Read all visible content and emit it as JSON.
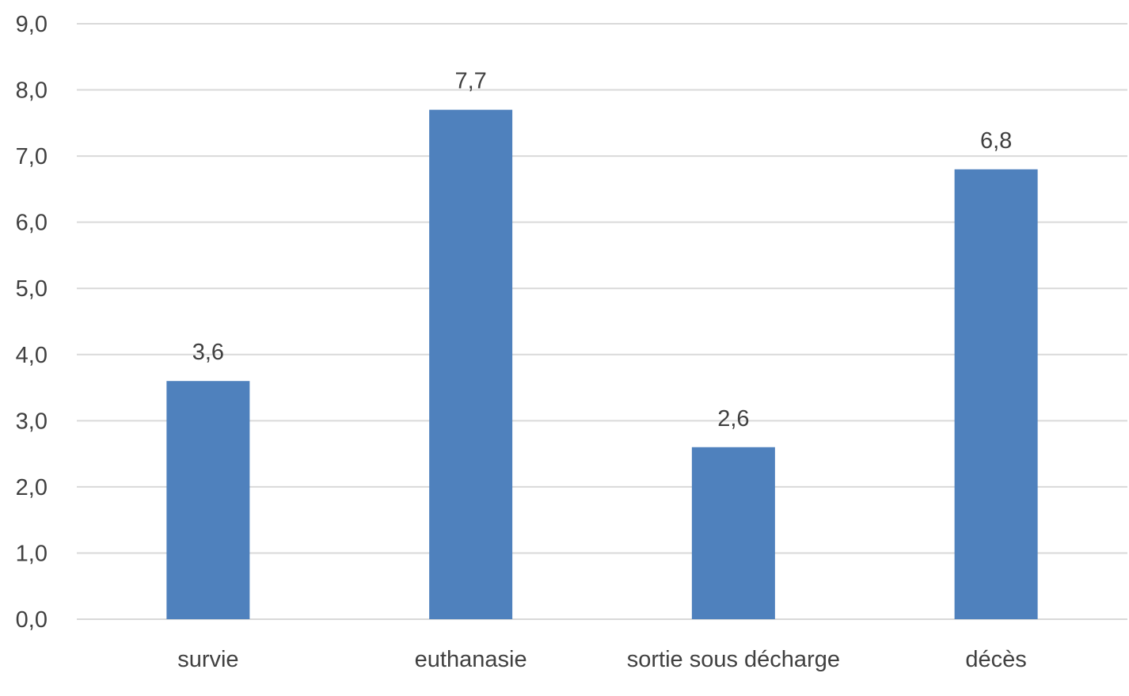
{
  "chart_data": {
    "type": "bar",
    "categories": [
      "survie",
      "euthanasie",
      "sortie sous décharge",
      "décès"
    ],
    "values": [
      3.6,
      7.7,
      2.6,
      6.8
    ],
    "data_labels": [
      "3,6",
      "7,7",
      "2,6",
      "6,8"
    ],
    "ylim": [
      0,
      9
    ],
    "yticks": [
      "0,0",
      "1,0",
      "2,0",
      "3,0",
      "4,0",
      "5,0",
      "6,0",
      "7,0",
      "8,0",
      "9,0"
    ],
    "grid": true,
    "bar_color": "#4f81bd",
    "grid_color": "#d9d9d9",
    "text_color": "#404040"
  }
}
